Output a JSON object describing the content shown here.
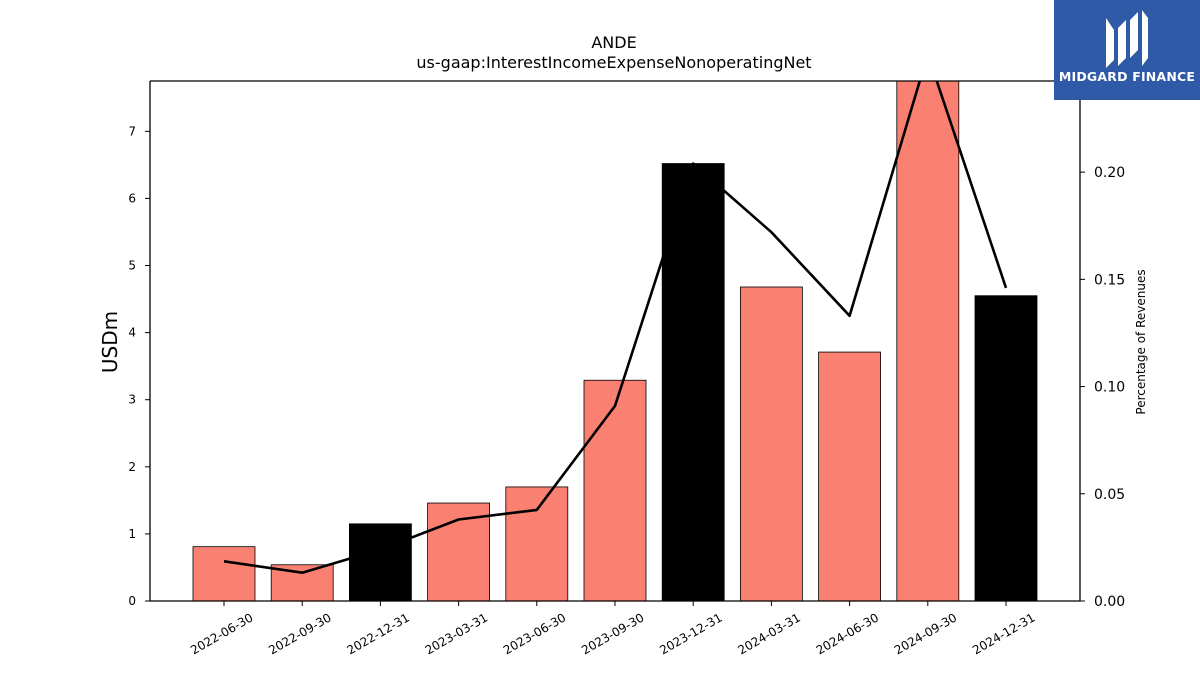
{
  "chart_data": {
    "type": "bar",
    "title": "ANDE",
    "subtitle": "us-gaap:InterestIncomeExpenseNonoperatingNet",
    "ylabel": "USDm",
    "y2label": "Percentage of Revenues",
    "categories": [
      "2022-06-30",
      "2022-09-30",
      "2022-12-31",
      "2023-03-31",
      "2023-06-30",
      "2023-09-30",
      "2023-12-31",
      "2024-03-31",
      "2024-06-30",
      "2024-09-30",
      "2024-12-31"
    ],
    "bar_values": [
      0.81,
      0.54,
      1.15,
      1.46,
      1.7,
      3.29,
      6.52,
      4.68,
      3.71,
      7.85,
      4.55
    ],
    "bar_colors": [
      "#fa8072",
      "#fa8072",
      "#000000",
      "#fa8072",
      "#fa8072",
      "#fa8072",
      "#000000",
      "#fa8072",
      "#fa8072",
      "#fa8072",
      "#000000"
    ],
    "line_values": [
      0.0185,
      0.0132,
      0.024,
      0.038,
      0.0425,
      0.091,
      0.204,
      0.172,
      0.133,
      0.255,
      0.146
    ],
    "line_color": "#000000",
    "ylim": [
      0,
      7.75
    ],
    "y_ticks": [
      0,
      1,
      2,
      3,
      4,
      5,
      6,
      7
    ],
    "y2lim": [
      0,
      0.2425
    ],
    "y2_ticks": [
      "0.00",
      "0.05",
      "0.10",
      "0.15",
      "0.20"
    ],
    "grid": false
  },
  "logo": {
    "text": "MIDGARD FINANCE",
    "bg_color": "#2f5aa8"
  }
}
